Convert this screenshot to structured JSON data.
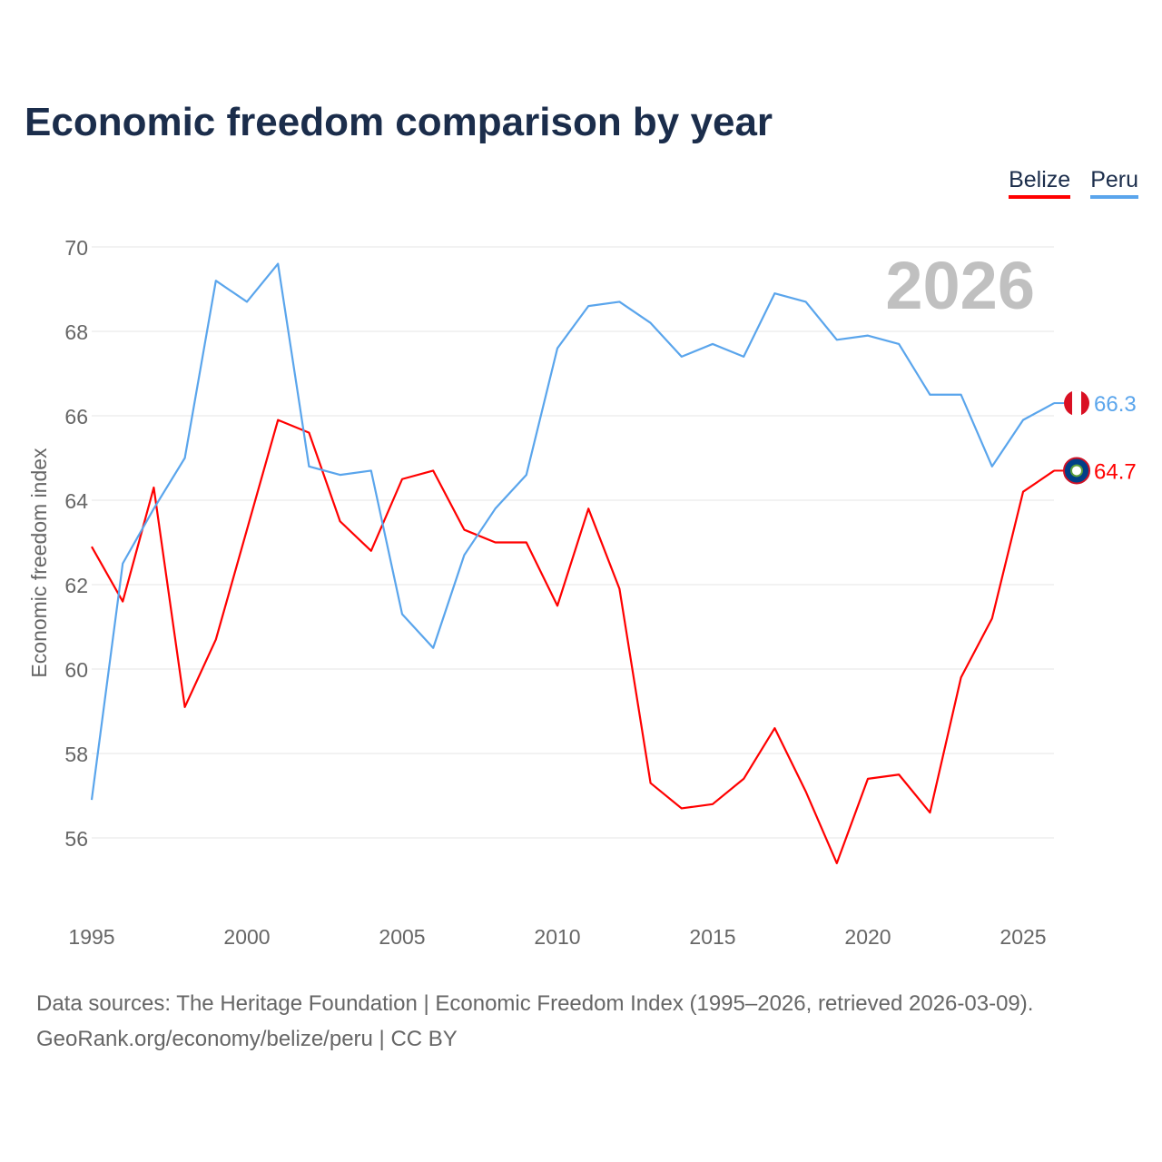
{
  "title": "Economic freedom comparison by year",
  "footer": {
    "line1": "Data sources: The Heritage Foundation | Economic Freedom Index (1995–2026, retrieved 2026-03-09).",
    "line2": "GeoRank.org/economy/belize/peru | CC BY"
  },
  "chart_data": {
    "type": "line",
    "title": "Economic freedom comparison by year",
    "xlabel": "",
    "ylabel": "Economic freedom index",
    "year_watermark": "2026",
    "x": [
      1995,
      1996,
      1997,
      1998,
      1999,
      2000,
      2001,
      2002,
      2003,
      2004,
      2005,
      2006,
      2007,
      2008,
      2009,
      2010,
      2011,
      2012,
      2013,
      2014,
      2015,
      2016,
      2017,
      2018,
      2019,
      2020,
      2021,
      2022,
      2023,
      2024,
      2025,
      2026
    ],
    "xticks": [
      "1995",
      "2000",
      "2005",
      "2010",
      "2015",
      "2020",
      "2025"
    ],
    "yticks": [
      "56",
      "58",
      "60",
      "62",
      "64",
      "66",
      "68",
      "70"
    ],
    "ylim": [
      54.5,
      70
    ],
    "grid": true,
    "legend_position": "top-right",
    "series": [
      {
        "name": "Belize",
        "color": "#ff0000",
        "end_label": "64.7",
        "values": [
          62.9,
          61.6,
          64.3,
          59.1,
          60.7,
          63.3,
          65.9,
          65.6,
          63.5,
          62.8,
          64.5,
          64.7,
          63.3,
          63.0,
          63.0,
          61.5,
          63.8,
          61.9,
          57.3,
          56.7,
          56.8,
          57.4,
          58.6,
          57.1,
          55.4,
          57.4,
          57.5,
          56.6,
          59.8,
          61.2,
          64.2,
          64.7
        ]
      },
      {
        "name": "Peru",
        "color": "#5aa5ec",
        "end_label": "66.3",
        "values": [
          56.9,
          62.5,
          63.8,
          65.0,
          69.2,
          68.7,
          69.6,
          64.8,
          64.6,
          64.7,
          61.3,
          60.5,
          62.7,
          63.8,
          64.6,
          67.6,
          68.6,
          68.7,
          68.2,
          67.4,
          67.7,
          67.4,
          68.9,
          68.7,
          67.8,
          67.9,
          67.7,
          66.5,
          66.5,
          64.8,
          65.9,
          66.3
        ]
      }
    ]
  }
}
